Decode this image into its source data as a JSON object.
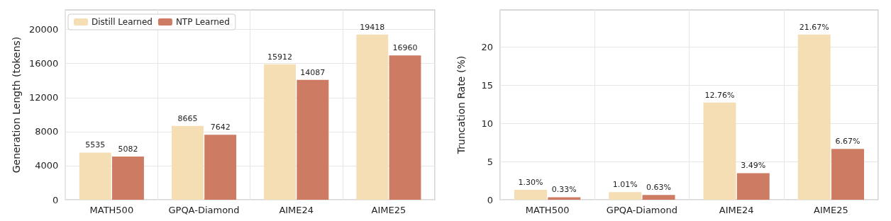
{
  "chart_data": [
    {
      "type": "bar",
      "ylabel": "Generation Length (tokens)",
      "categories": [
        "MATH500",
        "GPQA-Diamond",
        "AIME24",
        "AIME25"
      ],
      "series": [
        {
          "name": "Distill Learned",
          "color": "#f5deb3",
          "values": [
            5535,
            8665,
            15912,
            19418
          ]
        },
        {
          "name": "NTP Learned",
          "color": "#cd7b63",
          "values": [
            5082,
            7642,
            14087,
            16960
          ]
        }
      ],
      "ylim": [
        0,
        22300
      ],
      "yticks": [
        0,
        4000,
        8000,
        12000,
        16000,
        20000
      ],
      "grid": true,
      "legend": "top left",
      "data_labels": true
    },
    {
      "type": "bar",
      "ylabel": "Truncation Rate (%)",
      "categories": [
        "MATH500",
        "GPQA-Diamond",
        "AIME24",
        "AIME25"
      ],
      "series": [
        {
          "color": "#f5deb3",
          "values": [
            1.3,
            1.01,
            12.76,
            21.67
          ],
          "value_labels": [
            "1.30%",
            "1.01%",
            "12.76%",
            "21.67%"
          ]
        },
        {
          "color": "#cd7b63",
          "values": [
            0.33,
            0.63,
            3.49,
            6.67
          ],
          "value_labels": [
            "0.33%",
            "0.63%",
            "3.49%",
            "6.67%"
          ]
        }
      ],
      "ylim": [
        0,
        24.9
      ],
      "yticks": [
        0,
        5,
        10,
        15,
        20
      ],
      "grid": true,
      "legend": false
    }
  ]
}
